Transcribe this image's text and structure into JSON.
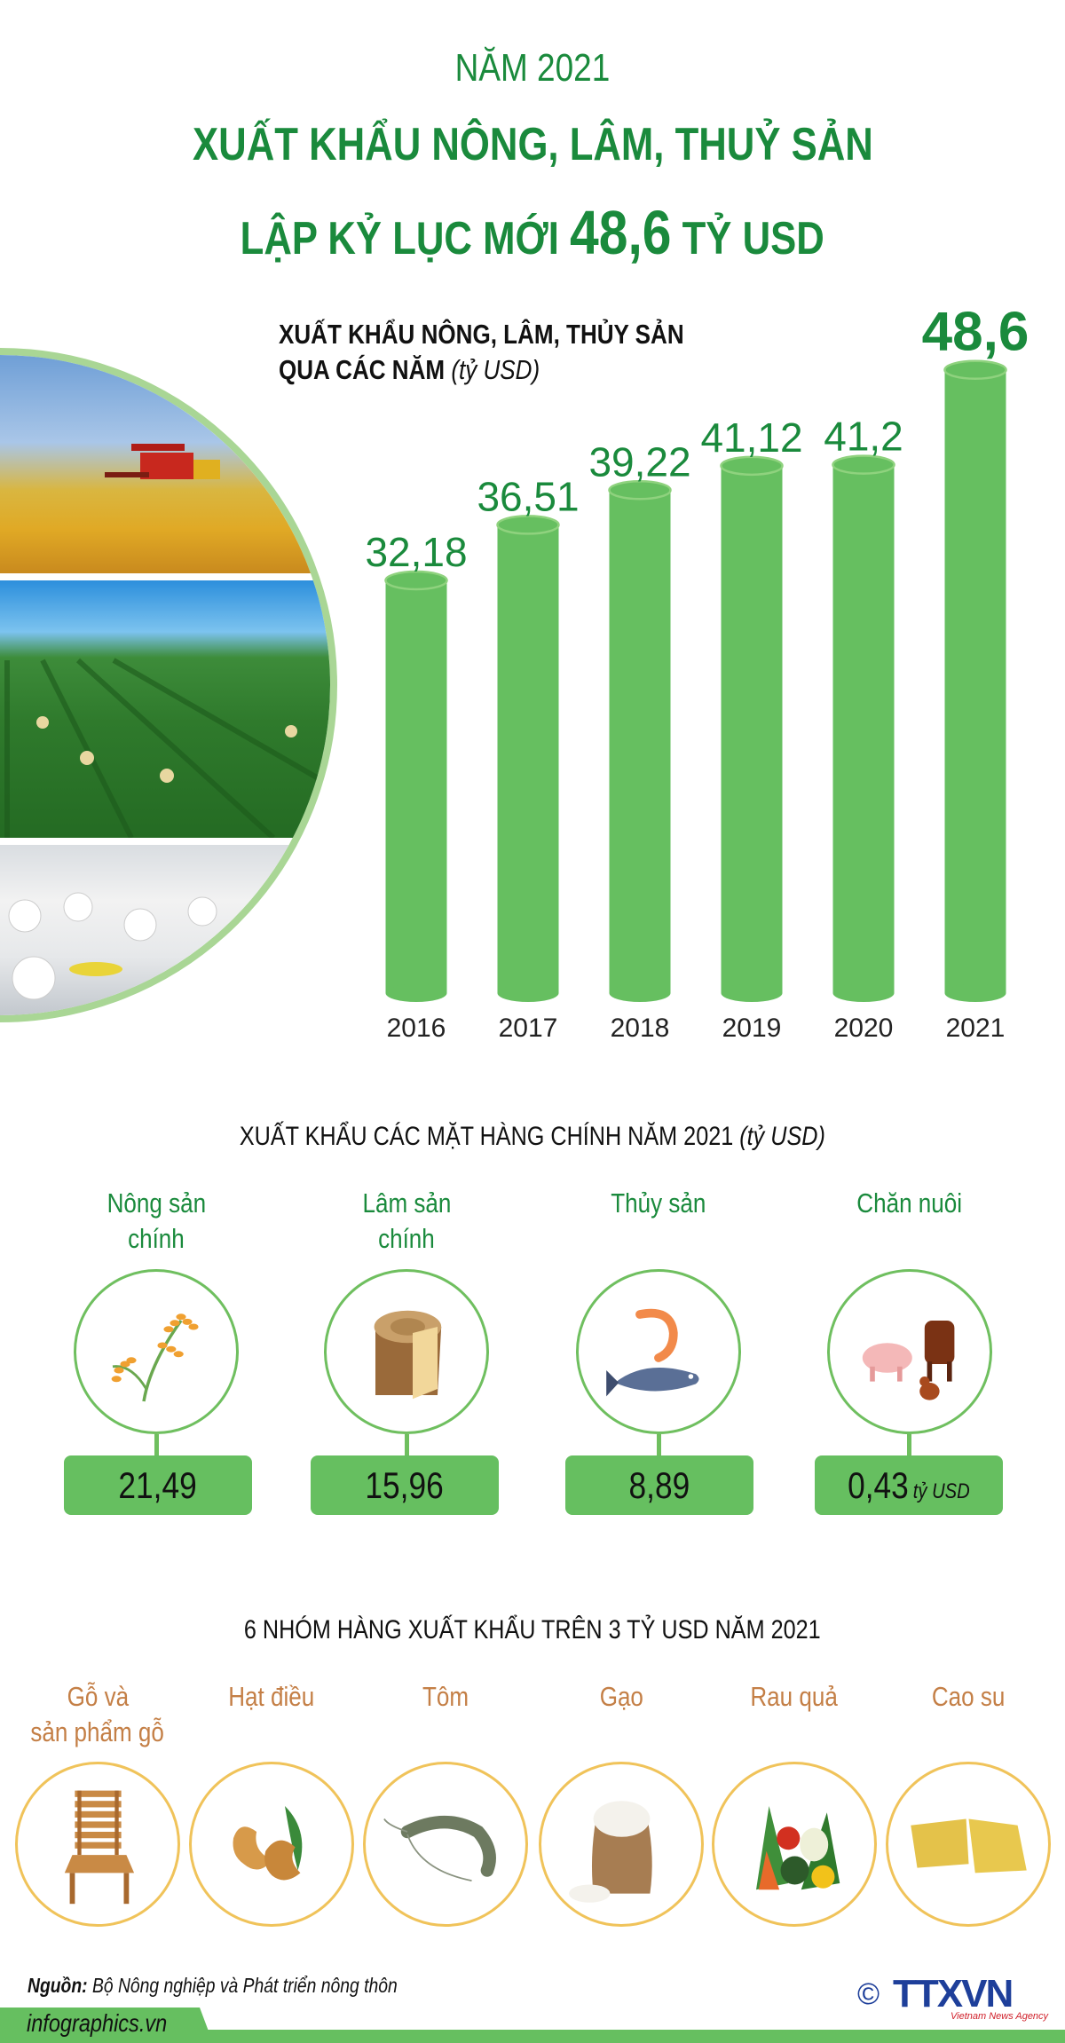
{
  "header": {
    "year_line": "NĂM 2021",
    "title_line1": "XUẤT KHẨU NÔNG, LÂM, THUỶ SẢN",
    "title_line3_prefix": "LẬP KỶ LỤC MỚI",
    "title_highlight": "48,6",
    "title_line3_suffix": "TỶ USD"
  },
  "chart_data": {
    "type": "bar",
    "title_line1": "XUẤT KHẨU NÔNG, LÂM, THỦY SẢN",
    "title_line2": "QUA CÁC NĂM",
    "unit": "(tỷ USD)",
    "categories": [
      "2016",
      "2017",
      "2018",
      "2019",
      "2020",
      "2021"
    ],
    "values": [
      32.18,
      36.51,
      39.22,
      41.12,
      41.2,
      48.6
    ],
    "value_labels": [
      "32,18",
      "36,51",
      "39,22",
      "41,12",
      "41,2",
      "48,6"
    ],
    "highlight_index": 5,
    "bar_style": "cylinder",
    "grid": false,
    "colors": {
      "bar": "#66bf60",
      "bar_cap": "#8fd27e",
      "label": "#1a8a3c",
      "year": "#222222"
    }
  },
  "photos": [
    {
      "icon": "rice-harvest-photo"
    },
    {
      "icon": "tea-plantation-photo"
    },
    {
      "icon": "seafood-processing-photo"
    }
  ],
  "main_exports": {
    "heading": "XUẤT KHẨU CÁC MẶT HÀNG CHÍNH NĂM 2021",
    "unit": "(tỷ USD)",
    "items": [
      {
        "line1": "Nông sản",
        "line2": "chính",
        "value": "21,49",
        "icon": "rice-stalk-icon"
      },
      {
        "line1": "Lâm sản",
        "line2": "chính",
        "value": "15,96",
        "icon": "wood-log-icon"
      },
      {
        "line1": "Thủy sản",
        "line2": "",
        "value": "8,89",
        "icon": "shrimp-fish-icon"
      },
      {
        "line1": "Chăn nuôi",
        "line2": "",
        "value": "0,43",
        "icon": "livestock-icon",
        "unit": "tỷ USD"
      }
    ]
  },
  "top_groups": {
    "heading": "6 NHÓM HÀNG XUẤT KHẨU TRÊN 3 TỶ USD NĂM 2021",
    "items": [
      {
        "line1": "Gỗ và",
        "line2": "sản phẩm gỗ",
        "icon": "wooden-chair-icon"
      },
      {
        "line1": "Hạt điều",
        "line2": "",
        "icon": "cashew-icon"
      },
      {
        "line1": "Tôm",
        "line2": "",
        "icon": "shrimp-icon"
      },
      {
        "line1": "Gạo",
        "line2": "",
        "icon": "rice-sack-icon"
      },
      {
        "line1": "Rau quả",
        "line2": "",
        "icon": "vegetables-icon"
      },
      {
        "line1": "Cao su",
        "line2": "",
        "icon": "rubber-block-icon"
      }
    ]
  },
  "footer": {
    "source_label": "Nguồn:",
    "source_text": "Bộ Nông nghiệp và Phát triển nông thôn",
    "site": "infographics.vn",
    "copyright": "©",
    "logo": "TTXVN",
    "logo_sub": "Vietnam News Agency"
  }
}
